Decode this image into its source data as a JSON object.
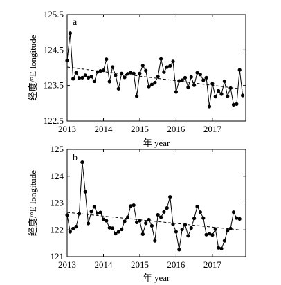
{
  "chart_data": [
    {
      "type": "line",
      "panel_label": "a",
      "xlabel": "年 year",
      "ylabel": "经度/°E longitude",
      "xlim": [
        2013.0,
        2017.917
      ],
      "ylim": [
        122.5,
        125.5
      ],
      "x_ticks": [
        2013,
        2014,
        2015,
        2016,
        2017
      ],
      "y_ticks": [
        122.5,
        123.5,
        124.5,
        125.5
      ],
      "y_tick_labels": [
        "122.5",
        "123.5",
        "124.5",
        "125.5"
      ],
      "series": [
        {
          "x_start": 2013.0,
          "x_step_months": 1,
          "values": [
            124.2,
            124.98,
            123.69,
            123.86,
            123.71,
            123.72,
            123.79,
            123.72,
            123.75,
            123.62,
            123.88,
            123.91,
            123.93,
            124.24,
            123.61,
            124.02,
            123.79,
            123.41,
            123.84,
            123.73,
            123.83,
            123.86,
            123.84,
            123.2,
            123.84,
            124.06,
            123.92,
            123.47,
            123.53,
            123.58,
            123.75,
            124.25,
            123.88,
            124.02,
            124.05,
            124.18,
            123.32,
            123.63,
            123.65,
            123.72,
            123.45,
            123.74,
            123.51,
            123.86,
            123.81,
            123.65,
            123.72,
            122.91,
            123.55,
            123.19,
            123.35,
            123.26,
            123.62,
            123.2,
            123.43,
            122.96,
            122.98,
            123.94,
            123.22
          ],
          "trend": [
            124.02,
            123.4
          ]
        }
      ]
    },
    {
      "type": "line",
      "panel_label": "b",
      "xlabel": "年 year",
      "ylabel": "经度/°E longitude",
      "xlim": [
        2013.0,
        2017.917
      ],
      "ylim": [
        121,
        125
      ],
      "x_ticks": [
        2013,
        2014,
        2015,
        2016,
        2017
      ],
      "y_ticks": [
        121,
        122,
        123,
        124,
        125
      ],
      "y_tick_labels": [
        "121",
        "122",
        "123",
        "124",
        "125"
      ],
      "series": [
        {
          "x_start": 2013.0,
          "x_step_months": 1,
          "values": [
            122.55,
            121.93,
            122.05,
            122.12,
            122.6,
            124.52,
            123.42,
            122.24,
            122.68,
            122.86,
            122.62,
            122.65,
            122.39,
            122.34,
            122.08,
            122.06,
            121.86,
            121.93,
            122.02,
            122.32,
            122.47,
            122.89,
            122.92,
            122.28,
            122.34,
            121.84,
            122.25,
            122.38,
            122.15,
            121.59,
            122.56,
            122.47,
            122.67,
            122.82,
            123.23,
            122.21,
            121.93,
            121.26,
            122.02,
            122.19,
            121.78,
            122.07,
            122.43,
            122.87,
            122.66,
            122.44,
            121.82,
            121.86,
            121.81,
            122.03,
            121.33,
            121.3,
            121.59,
            121.97,
            122.05,
            122.66,
            122.44,
            122.41
          ],
          "trend": [
            122.65,
            122.0
          ]
        }
      ]
    }
  ]
}
